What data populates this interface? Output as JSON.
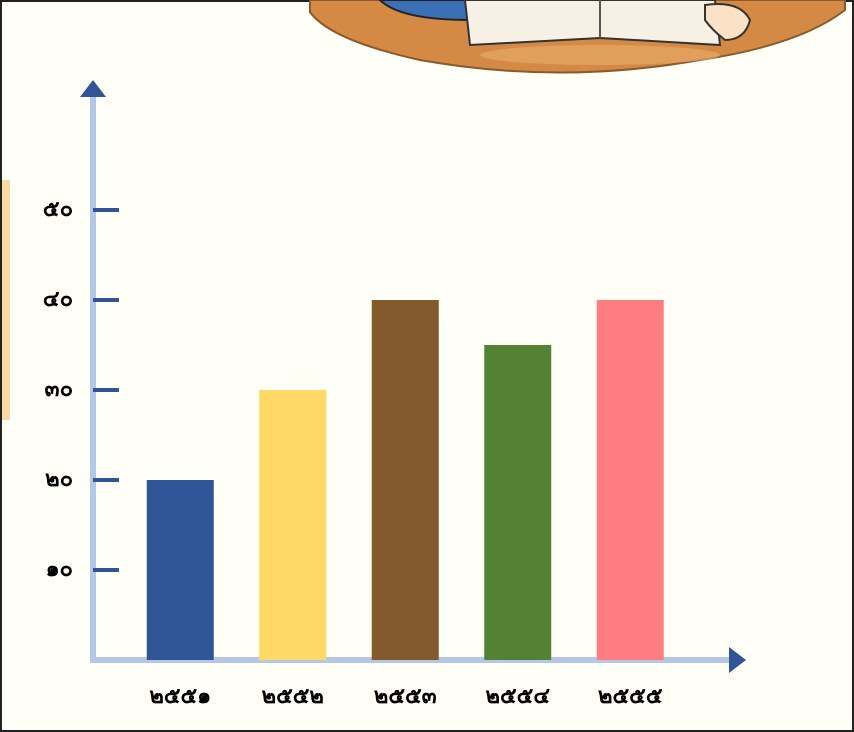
{
  "chart_data": {
    "type": "bar",
    "categories": [
      "๒๕๕๑",
      "๒๕๕๒",
      "๒๕๕๓",
      "๒๕๕๔",
      "๒๕๕๕"
    ],
    "values": [
      20,
      30,
      40,
      35,
      40
    ],
    "colors": [
      "#2f5597",
      "#ffd966",
      "#84592b",
      "#548235",
      "#ff7c80"
    ],
    "ylim": [
      0,
      60
    ],
    "yticks": [
      {
        "value": 10,
        "label": "๑๐"
      },
      {
        "value": 20,
        "label": "๒๐"
      },
      {
        "value": 30,
        "label": "๓๐"
      },
      {
        "value": 40,
        "label": "๔๐"
      },
      {
        "value": 50,
        "label": "๕๐"
      }
    ]
  }
}
